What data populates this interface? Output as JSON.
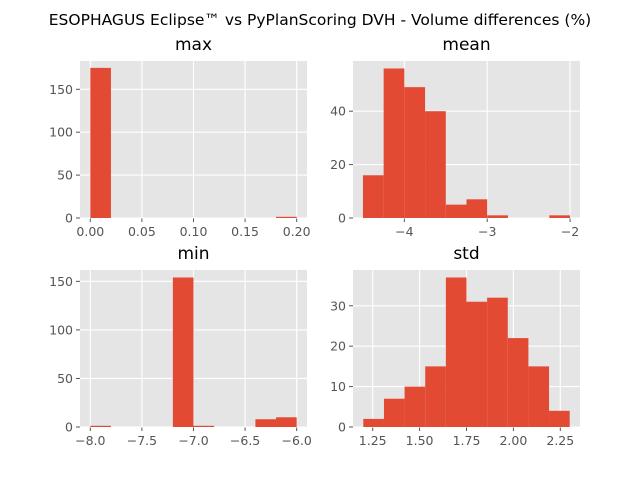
{
  "figure": {
    "title": "ESOPHAGUS Eclipse™ vs PyPlanScoring DVH - Volume differences (%)"
  },
  "chart_data": [
    {
      "type": "bar",
      "title": "max",
      "bin_edges": [
        0.0,
        0.02,
        0.04,
        0.06,
        0.08,
        0.1,
        0.12,
        0.14,
        0.16,
        0.18,
        0.2
      ],
      "counts": [
        175,
        0,
        0,
        0,
        0,
        0,
        0,
        0,
        0,
        1
      ],
      "xlim": [
        -0.01,
        0.21
      ],
      "ylim": [
        0,
        183
      ],
      "xticks": [
        0.0,
        0.05,
        0.1,
        0.15,
        0.2
      ],
      "xtick_labels": [
        "0.00",
        "0.05",
        "0.10",
        "0.15",
        "0.20"
      ],
      "yticks": [
        0,
        50,
        100,
        150
      ],
      "ytick_labels": [
        "0",
        "50",
        "100",
        "150"
      ]
    },
    {
      "type": "bar",
      "title": "mean",
      "bin_edges": [
        -4.5,
        -4.25,
        -4.0,
        -3.75,
        -3.5,
        -3.25,
        -3.0,
        -2.75,
        -2.5,
        -2.25,
        -2.0
      ],
      "counts": [
        16,
        56,
        49,
        40,
        5,
        7,
        1,
        0,
        0,
        1
      ],
      "xlim": [
        -4.62,
        -1.88
      ],
      "ylim": [
        0,
        58.8
      ],
      "xticks": [
        -4,
        -3,
        -2
      ],
      "xtick_labels": [
        "−4",
        "−3",
        "−2"
      ],
      "yticks": [
        0,
        20,
        40
      ],
      "ytick_labels": [
        "0",
        "20",
        "40"
      ]
    },
    {
      "type": "bar",
      "title": "min",
      "bin_edges": [
        -8.0,
        -7.8,
        -7.6,
        -7.4,
        -7.2,
        -7.0,
        -6.8,
        -6.6,
        -6.4,
        -6.2,
        -6.0
      ],
      "counts": [
        1,
        0,
        0,
        0,
        154,
        1,
        0,
        0,
        8,
        10
      ],
      "xlim": [
        -8.1,
        -5.9
      ],
      "ylim": [
        0,
        161.7
      ],
      "xticks": [
        -8.0,
        -7.5,
        -7.0,
        -6.5,
        -6.0
      ],
      "xtick_labels": [
        "−8.0",
        "−7.5",
        "−7.0",
        "−6.5",
        "−6.0"
      ],
      "yticks": [
        0,
        50,
        100,
        150
      ],
      "ytick_labels": [
        "0",
        "50",
        "100",
        "150"
      ]
    },
    {
      "type": "bar",
      "title": "std",
      "bin_edges": [
        1.2,
        1.31,
        1.42,
        1.53,
        1.64,
        1.75,
        1.86,
        1.97,
        2.08,
        2.19,
        2.3
      ],
      "counts": [
        2,
        7,
        10,
        15,
        37,
        31,
        32,
        22,
        15,
        4
      ],
      "xlim": [
        1.145,
        2.355
      ],
      "ylim": [
        0,
        38.85
      ],
      "xticks": [
        1.25,
        1.5,
        1.75,
        2.0,
        2.25
      ],
      "xtick_labels": [
        "1.25",
        "1.50",
        "1.75",
        "2.00",
        "2.25"
      ],
      "yticks": [
        0,
        10,
        20,
        30
      ],
      "ytick_labels": [
        "0",
        "10",
        "20",
        "30"
      ]
    }
  ]
}
